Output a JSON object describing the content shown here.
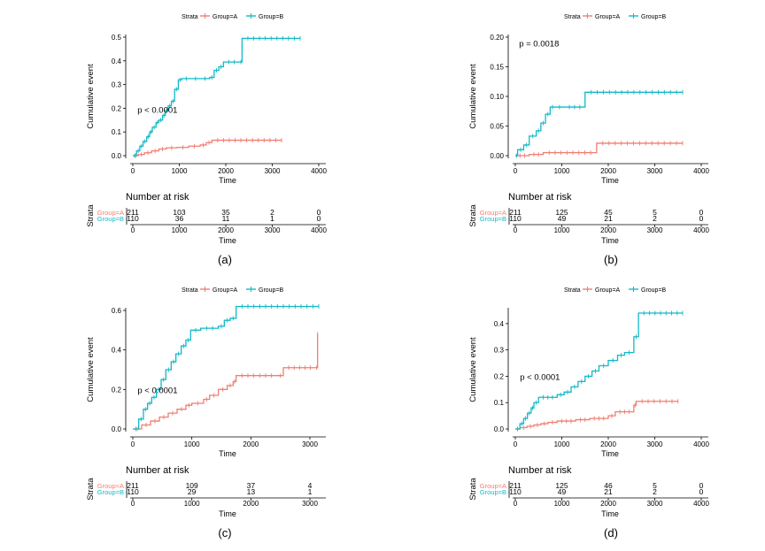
{
  "colors": {
    "group_a": "#F07E72",
    "group_b": "#13B8C6",
    "axis": "#000000"
  },
  "chart_data": [
    {
      "type": "line",
      "panel_label": "(a)",
      "legend": {
        "title": "Strata",
        "entries": [
          "Group=A",
          "Group=B"
        ],
        "placement": "top"
      },
      "xlabel": "Time",
      "ylabel": "Cumulative event",
      "xlim": [
        0,
        4000
      ],
      "ylim": [
        0,
        0.5
      ],
      "x_ticks": [
        0,
        1000,
        2000,
        3000,
        4000
      ],
      "y_ticks": [
        0.0,
        0.1,
        0.2,
        0.3,
        0.4,
        0.5
      ],
      "y_tick_labels": [
        "0.0",
        "0.1",
        "0.2",
        "0.3",
        "0.4",
        "0.5"
      ],
      "annotation": {
        "text": "p < 0.0001",
        "x": 100,
        "y": 0.195
      },
      "series": [
        {
          "name": "Group=A",
          "x": [
            0,
            120,
            250,
            400,
            560,
            720,
            950,
            1200,
            1450,
            1580,
            1700,
            3200
          ],
          "y": [
            0,
            0.005,
            0.012,
            0.02,
            0.028,
            0.033,
            0.035,
            0.04,
            0.045,
            0.055,
            0.065,
            0.065
          ]
        },
        {
          "name": "Group=B",
          "x": [
            0,
            80,
            150,
            220,
            300,
            360,
            420,
            500,
            560,
            640,
            700,
            760,
            830,
            900,
            980,
            1050,
            1250,
            1450,
            1650,
            1750,
            1850,
            1950,
            2300,
            2350,
            3600
          ],
          "y": [
            0,
            0.02,
            0.04,
            0.06,
            0.08,
            0.1,
            0.12,
            0.14,
            0.15,
            0.17,
            0.19,
            0.21,
            0.23,
            0.28,
            0.32,
            0.325,
            0.325,
            0.325,
            0.33,
            0.36,
            0.375,
            0.395,
            0.395,
            0.495,
            0.495
          ]
        }
      ],
      "risk_table": {
        "title": "Number at risk",
        "strata_label": "Strata",
        "rows": [
          {
            "label": "Group=A",
            "values": [
              "211",
              "103",
              "35",
              "2",
              "0"
            ]
          },
          {
            "label": "Group=B",
            "values": [
              "110",
              "36",
              "11",
              "1",
              "0"
            ]
          }
        ],
        "x_ticks": [
          0,
          1000,
          2000,
          3000,
          4000
        ],
        "xlabel": "Time"
      }
    },
    {
      "type": "line",
      "panel_label": "(b)",
      "legend": {
        "title": "Strata",
        "entries": [
          "Group=A",
          "Group=B"
        ],
        "placement": "top"
      },
      "xlabel": "Time",
      "ylabel": "Cumulative event",
      "xlim": [
        0,
        4000
      ],
      "ylim": [
        0,
        0.2
      ],
      "x_ticks": [
        0,
        1000,
        2000,
        3000,
        4000
      ],
      "y_ticks": [
        0.0,
        0.05,
        0.1,
        0.15,
        0.2
      ],
      "y_tick_labels": [
        "0.00",
        "0.05",
        "0.10",
        "0.15",
        "0.20"
      ],
      "annotation": {
        "text": "p = 0.0018",
        "x": 80,
        "y": 0.19
      },
      "series": [
        {
          "name": "Group=A",
          "x": [
            0,
            300,
            600,
            1750,
            3600
          ],
          "y": [
            0,
            0.002,
            0.005,
            0.021,
            0.021
          ]
        },
        {
          "name": "Group=B",
          "x": [
            0,
            50,
            180,
            300,
            450,
            550,
            650,
            750,
            850,
            1050,
            1500,
            3600
          ],
          "y": [
            0,
            0.01,
            0.018,
            0.033,
            0.042,
            0.055,
            0.07,
            0.082,
            0.082,
            0.082,
            0.107,
            0.107
          ]
        }
      ],
      "risk_table": {
        "title": "Number at risk",
        "strata_label": "Strata",
        "rows": [
          {
            "label": "Group=A",
            "values": [
              "211",
              "125",
              "45",
              "5",
              "0"
            ]
          },
          {
            "label": "Group=B",
            "values": [
              "110",
              "49",
              "21",
              "2",
              "0"
            ]
          }
        ],
        "x_ticks": [
          0,
          1000,
          2000,
          3000,
          4000
        ],
        "xlabel": "Time"
      }
    },
    {
      "type": "line",
      "panel_label": "(c)",
      "legend": {
        "title": "Strata",
        "entries": [
          "Group=A",
          "Group=B"
        ],
        "placement": "top"
      },
      "xlabel": "Time",
      "ylabel": "Cumulative event",
      "xlim": [
        0,
        3150
      ],
      "ylim": [
        0,
        0.6
      ],
      "x_ticks": [
        0,
        1000,
        2000,
        3000
      ],
      "y_ticks": [
        0.0,
        0.2,
        0.4,
        0.6
      ],
      "y_tick_labels": [
        "0.0",
        "0.2",
        "0.4",
        "0.6"
      ],
      "annotation": {
        "text": "p < 0.0001",
        "x": 80,
        "y": 0.2
      },
      "series": [
        {
          "name": "Group=A",
          "x": [
            0,
            150,
            300,
            450,
            600,
            750,
            900,
            1000,
            1200,
            1300,
            1450,
            1600,
            1700,
            1750,
            2450,
            2550,
            3100,
            3130
          ],
          "y": [
            0,
            0.02,
            0.04,
            0.06,
            0.08,
            0.1,
            0.12,
            0.13,
            0.15,
            0.17,
            0.2,
            0.22,
            0.24,
            0.27,
            0.27,
            0.31,
            0.31,
            0.48
          ]
        },
        {
          "name": "Group=B",
          "x": [
            0,
            100,
            180,
            250,
            320,
            400,
            480,
            560,
            650,
            730,
            820,
            900,
            980,
            1150,
            1450,
            1550,
            1650,
            1750,
            3150
          ],
          "y": [
            0,
            0.05,
            0.1,
            0.13,
            0.16,
            0.2,
            0.25,
            0.3,
            0.34,
            0.38,
            0.42,
            0.45,
            0.5,
            0.51,
            0.52,
            0.55,
            0.56,
            0.62,
            0.62
          ]
        }
      ],
      "risk_table": {
        "title": "Number at risk",
        "strata_label": "Strata",
        "rows": [
          {
            "label": "Group=A",
            "values": [
              "211",
              "109",
              "37",
              "4"
            ]
          },
          {
            "label": "Group=B",
            "values": [
              "110",
              "29",
              "13",
              "1"
            ]
          }
        ],
        "x_ticks": [
          0,
          1000,
          2000,
          3000
        ],
        "xlabel": "Time"
      }
    },
    {
      "type": "line",
      "panel_label": "(d)",
      "legend": {
        "title": "Strata",
        "entries": [
          "Group=A",
          "Group=B"
        ],
        "placement": "top"
      },
      "xlabel": "Time",
      "ylabel": "Cumulative event",
      "xlim": [
        0,
        4000
      ],
      "ylim": [
        0,
        0.45
      ],
      "x_ticks": [
        0,
        1000,
        2000,
        3000,
        4000
      ],
      "y_ticks": [
        0.0,
        0.1,
        0.2,
        0.3,
        0.4
      ],
      "y_tick_labels": [
        "0.0",
        "0.1",
        "0.2",
        "0.3",
        "0.4"
      ],
      "annotation": {
        "text": "p < 0.0001",
        "x": 100,
        "y": 0.2
      },
      "series": [
        {
          "name": "Group=A",
          "x": [
            0,
            100,
            250,
            400,
            550,
            700,
            900,
            1300,
            1600,
            2000,
            2150,
            2550,
            2600,
            3500
          ],
          "y": [
            0,
            0.005,
            0.01,
            0.015,
            0.02,
            0.025,
            0.03,
            0.035,
            0.04,
            0.05,
            0.065,
            0.09,
            0.105,
            0.105
          ]
        },
        {
          "name": "Group=B",
          "x": [
            0,
            100,
            180,
            260,
            340,
            400,
            500,
            900,
            1050,
            1200,
            1350,
            1500,
            1650,
            1800,
            2000,
            2200,
            2350,
            2550,
            2650,
            3600
          ],
          "y": [
            0,
            0.02,
            0.04,
            0.06,
            0.08,
            0.1,
            0.12,
            0.13,
            0.14,
            0.16,
            0.18,
            0.2,
            0.22,
            0.24,
            0.26,
            0.28,
            0.29,
            0.35,
            0.44,
            0.44
          ]
        }
      ],
      "risk_table": {
        "title": "Number at risk",
        "strata_label": "Strata",
        "rows": [
          {
            "label": "Group=A",
            "values": [
              "211",
              "125",
              "46",
              "5",
              "0"
            ]
          },
          {
            "label": "Group=B",
            "values": [
              "110",
              "49",
              "21",
              "2",
              "0"
            ]
          }
        ],
        "x_ticks": [
          0,
          1000,
          2000,
          3000,
          4000
        ],
        "xlabel": "Time"
      }
    }
  ]
}
